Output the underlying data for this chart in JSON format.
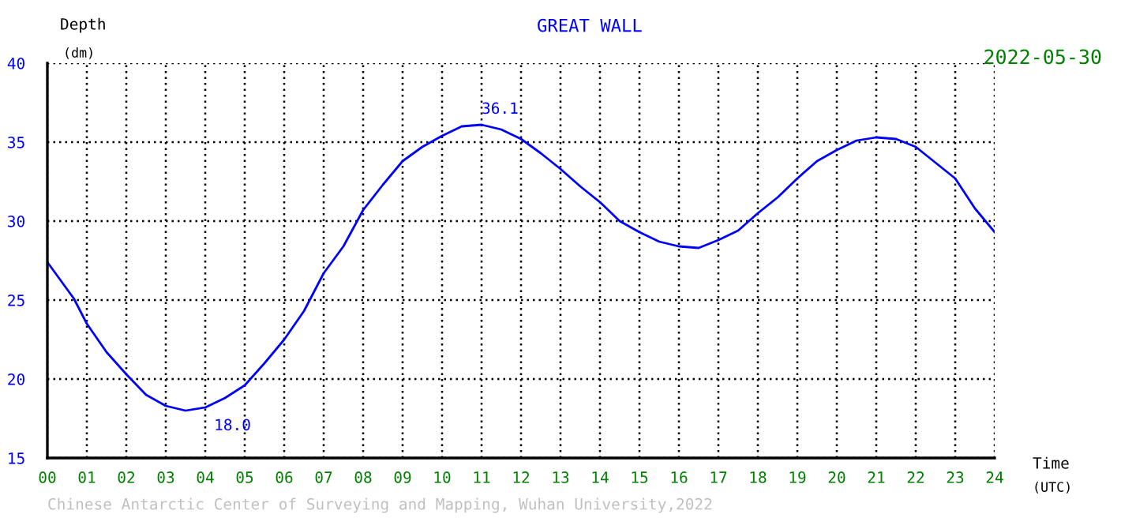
{
  "chart_data": {
    "type": "line",
    "title": "GREAT WALL",
    "subtitle": "2022-05-30",
    "xlabel": "Time\n(UTC)",
    "ylabel": "Depth\n(dm)",
    "x": [
      0,
      0.67,
      1,
      1.5,
      2,
      2.5,
      3,
      3.5,
      4,
      4.5,
      5,
      5.5,
      6,
      6.5,
      7,
      7.5,
      8,
      8.5,
      9,
      9.5,
      10,
      10.5,
      11,
      11.5,
      12,
      12.5,
      13,
      13.5,
      14,
      14.5,
      15,
      15.5,
      16,
      16.5,
      17,
      17.5,
      18,
      18.5,
      19,
      19.5,
      20,
      20.5,
      21,
      21.5,
      22,
      22.5,
      23,
      23.5,
      24
    ],
    "series": [
      {
        "color": "#0000ff",
        "values": [
          27.4,
          25.1,
          23.5,
          21.7,
          20.3,
          19.0,
          18.3,
          18.0,
          18.2,
          18.8,
          19.6,
          21.0,
          22.5,
          24.3,
          26.7,
          28.4,
          30.7,
          32.3,
          33.8,
          34.7,
          35.4,
          36.0,
          36.1,
          35.8,
          35.2,
          34.3,
          33.3,
          32.2,
          31.2,
          30.0,
          29.3,
          28.7,
          28.4,
          28.3,
          28.8,
          29.4,
          30.5,
          31.5,
          32.7,
          33.8,
          34.5,
          35.1,
          35.3,
          35.2,
          34.7,
          33.7,
          32.7,
          30.8,
          29.3
        ]
      }
    ],
    "annotations": [
      {
        "text": "36.1",
        "x": 11,
        "y": 36.1
      },
      {
        "text": "18.0",
        "x": 4,
        "y": 18.0
      },
      "Chinese Antarctic Center of Surveying and Mapping, Wuhan University,2022"
    ],
    "xlim": [
      0,
      24
    ],
    "ylim": [
      15,
      40
    ],
    "xticks": [
      {
        "value": 0,
        "label": "00"
      },
      {
        "value": 1,
        "label": "01"
      },
      {
        "value": 2,
        "label": "02"
      },
      {
        "value": 3,
        "label": "03"
      },
      {
        "value": 4,
        "label": "04"
      },
      {
        "value": 5,
        "label": "05"
      },
      {
        "value": 6,
        "label": "06"
      },
      {
        "value": 7,
        "label": "07"
      },
      {
        "value": 8,
        "label": "08"
      },
      {
        "value": 9,
        "label": "09"
      },
      10,
      11,
      12,
      13,
      14,
      15,
      16,
      17,
      18,
      19,
      20,
      21,
      22,
      23,
      24
    ],
    "yticks": [
      15,
      20,
      25,
      30,
      35,
      40
    ],
    "grid": true,
    "marker": "none",
    "line_style": "solid",
    "legend": false
  }
}
